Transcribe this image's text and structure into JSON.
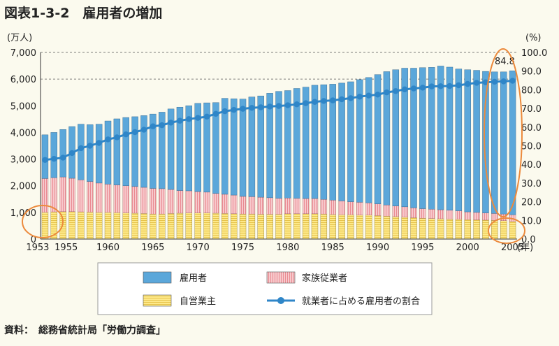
{
  "title": "図表1-3-2　雇用者の増加",
  "source": "資料：　総務省統計局「労働力調査」",
  "colors": {
    "employee": "#5ba7da",
    "family": "#f7c9cc",
    "family_stripe": "#e98b92",
    "self": "#fde98a",
    "self_stripe": "#e6c24a",
    "line": "#2f86c8",
    "circle": "#ec8a3c"
  },
  "chart_data": {
    "type": "bar",
    "stacked": true,
    "title": "",
    "left_axis_unit": "(万人)",
    "right_axis_unit": "(%)",
    "year_suffix": "(年)",
    "ylim": [
      0,
      7000
    ],
    "y2lim": [
      0,
      100
    ],
    "left_ticks": [
      "0",
      "1,000",
      "2,000",
      "3,000",
      "4,000",
      "5,000",
      "6,000",
      "7,000"
    ],
    "right_ticks": [
      "0.0",
      "10.0",
      "20.0",
      "30.0",
      "40.0",
      "50.0",
      "60.0",
      "70.0",
      "80.0",
      "90.0",
      "100.0"
    ],
    "x_tick_labels": [
      "1953",
      "1955",
      "1960",
      "1965",
      "1970",
      "1975",
      "1980",
      "1985",
      "1990",
      "1995",
      "2000",
      "2005"
    ],
    "annotation": "84.8",
    "grid": "dashed at 6,000 and 7,000",
    "legend_position": "bottom",
    "categories": [
      1953,
      1954,
      1955,
      1956,
      1957,
      1958,
      1959,
      1960,
      1961,
      1962,
      1963,
      1964,
      1965,
      1966,
      1967,
      1968,
      1969,
      1970,
      1971,
      1972,
      1973,
      1974,
      1975,
      1976,
      1977,
      1978,
      1979,
      1980,
      1981,
      1982,
      1983,
      1984,
      1985,
      1986,
      1987,
      1988,
      1989,
      1990,
      1991,
      1992,
      1993,
      1994,
      1995,
      1996,
      1997,
      1998,
      1999,
      2000,
      2001,
      2002,
      2003,
      2004,
      2005
    ],
    "series": [
      {
        "name": "自営業主",
        "axis": "left",
        "values": [
          1000,
          1020,
          1030,
          1030,
          1020,
          1010,
          1000,
          1000,
          990,
          980,
          970,
          960,
          940,
          940,
          960,
          970,
          980,
          980,
          980,
          970,
          960,
          950,
          940,
          940,
          930,
          930,
          930,
          950,
          950,
          950,
          950,
          940,
          920,
          910,
          910,
          900,
          900,
          880,
          860,
          840,
          820,
          800,
          780,
          770,
          760,
          750,
          740,
          730,
          720,
          710,
          700,
          690,
          660
        ]
      },
      {
        "name": "家族従業者",
        "axis": "left",
        "values": [
          1270,
          1280,
          1300,
          1250,
          1200,
          1150,
          1100,
          1060,
          1040,
          1020,
          1000,
          980,
          960,
          950,
          900,
          850,
          830,
          800,
          780,
          740,
          720,
          700,
          660,
          650,
          640,
          620,
          600,
          590,
          580,
          570,
          570,
          550,
          540,
          520,
          490,
          480,
          460,
          440,
          420,
          400,
          390,
          370,
          360,
          350,
          340,
          330,
          320,
          290,
          280,
          270,
          260,
          250,
          250
        ]
      },
      {
        "name": "雇用者",
        "axis": "left",
        "values": [
          1640,
          1700,
          1780,
          1940,
          2090,
          2130,
          2210,
          2370,
          2480,
          2560,
          2620,
          2690,
          2790,
          2870,
          3020,
          3130,
          3190,
          3310,
          3350,
          3410,
          3600,
          3610,
          3650,
          3740,
          3800,
          3920,
          4010,
          4030,
          4120,
          4180,
          4250,
          4300,
          4350,
          4420,
          4500,
          4600,
          4700,
          4850,
          5000,
          5110,
          5200,
          5240,
          5290,
          5320,
          5390,
          5370,
          5320,
          5330,
          5330,
          5310,
          5310,
          5330,
          5400
        ]
      },
      {
        "name": "就業者に占める雇用者の割合",
        "axis": "right",
        "type": "line",
        "values": [
          42.4,
          43.0,
          43.6,
          46.1,
          48.7,
          50.0,
          51.5,
          53.4,
          54.5,
          56.1,
          57.3,
          58.6,
          60.4,
          61.0,
          62.4,
          63.4,
          64.3,
          64.9,
          65.6,
          67.1,
          68.5,
          69.2,
          69.8,
          70.3,
          70.6,
          71.0,
          71.3,
          71.7,
          72.2,
          72.8,
          73.5,
          74.0,
          74.3,
          74.9,
          75.5,
          76.3,
          76.9,
          77.4,
          78.6,
          79.3,
          80.2,
          80.7,
          81.1,
          81.8,
          81.9,
          82.0,
          82.4,
          83.1,
          83.7,
          84.0,
          84.3,
          84.5,
          84.8
        ]
      }
    ]
  }
}
